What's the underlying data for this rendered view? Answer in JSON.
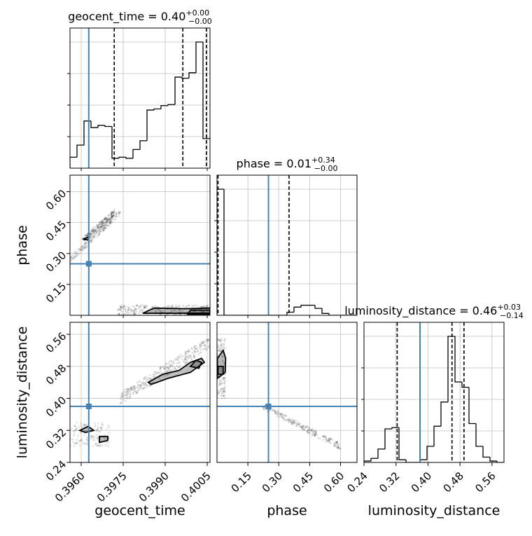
{
  "colors": {
    "truth": "#4682b4",
    "hist": "#000000",
    "grid": "#c0c0c0",
    "samples": "#7f7f7f"
  },
  "chart_data": {
    "type": "corner",
    "parameters": [
      "geocent_time",
      "phase",
      "luminosity_distance"
    ],
    "truths": {
      "geocent_time": 0.39627,
      "phase": 0.25,
      "luminosity_distance": 0.38
    },
    "titles": [
      {
        "param": "geocent_time",
        "text": "geocent_time = 0.40",
        "plus": "+0.00",
        "minus": "−0.00"
      },
      {
        "param": "phase",
        "text": "phase = 0.01",
        "plus": "+0.34",
        "minus": "−0.00"
      },
      {
        "param": "luminosity_distance",
        "text": "luminosity_distance = 0.46",
        "plus": "+0.03",
        "minus": "−0.14"
      }
    ],
    "axes": {
      "geocent_time": {
        "label": "geocent_time",
        "range": [
          0.3956,
          0.4006
        ],
        "ticks": [
          0.396,
          0.3975,
          0.399,
          0.4005
        ],
        "tick_labels": [
          "0.3960",
          "0.3975",
          "0.3990",
          "0.4005"
        ]
      },
      "phase": {
        "label": "phase",
        "range": [
          0.0,
          0.68
        ],
        "ticks": [
          0.15,
          0.3,
          0.45,
          0.6
        ],
        "tick_labels": [
          "0.15",
          "0.30",
          "0.45",
          "0.60"
        ]
      },
      "luminosity_distance": {
        "label": "luminosity_distance",
        "range": [
          0.24,
          0.59
        ],
        "ticks": [
          0.24,
          0.32,
          0.4,
          0.48,
          0.56
        ],
        "tick_labels": [
          "0.24",
          "0.32",
          "0.40",
          "0.48",
          "0.56"
        ]
      }
    },
    "hist_ylim_grid": [
      0,
      0.25,
      0.5,
      0.75,
      1
    ],
    "histograms": {
      "geocent_time": {
        "edges": [
          0.3956,
          0.39585,
          0.3961,
          0.39635,
          0.3966,
          0.39685,
          0.3971,
          0.39735,
          0.3976,
          0.39785,
          0.3981,
          0.39835,
          0.3986,
          0.39885,
          0.3991,
          0.39935,
          0.3996,
          0.39985,
          0.4001,
          0.40035,
          0.4006
        ],
        "counts": [
          10,
          21,
          43,
          37,
          39,
          38,
          9,
          10,
          9,
          17,
          25,
          53,
          54,
          57,
          58,
          83,
          82,
          87,
          115,
          27
        ],
        "quantile_lines": [
          0.39718,
          0.39963,
          0.40047
        ]
      },
      "phase": {
        "edges": [
          0.0,
          0.034,
          0.068,
          0.102,
          0.136,
          0.17,
          0.204,
          0.238,
          0.272,
          0.306,
          0.34,
          0.374,
          0.408,
          0.442,
          0.476,
          0.51,
          0.544,
          0.578,
          0.612,
          0.646,
          0.68
        ],
        "counts": [
          200,
          0,
          0,
          0,
          0,
          0,
          0,
          0,
          0,
          0,
          5,
          13,
          16,
          16,
          11,
          3,
          0,
          0,
          0,
          0
        ],
        "quantile_lines": [
          0.005,
          0.35
        ]
      },
      "luminosity_distance": {
        "edges": [
          0.24,
          0.2575,
          0.275,
          0.2925,
          0.31,
          0.3275,
          0.345,
          0.3625,
          0.38,
          0.3975,
          0.415,
          0.4325,
          0.45,
          0.4675,
          0.485,
          0.5025,
          0.52,
          0.5375,
          0.555,
          0.5725,
          0.59
        ],
        "counts": [
          1,
          3,
          10,
          25,
          26,
          2,
          0,
          0,
          2,
          12,
          27,
          45,
          94,
          60,
          56,
          29,
          12,
          4,
          1,
          0
        ],
        "quantile_lines": [
          0.323,
          0.46,
          0.49
        ]
      }
    },
    "scatter_panels": [
      {
        "x": "geocent_time",
        "y": "phase",
        "clusters": [
          {
            "x": [
              0.3956,
              0.3974
            ],
            "y": [
              0.27,
              0.5
            ],
            "density": 0.35,
            "n": 220
          },
          {
            "x": [
              0.3961,
              0.3972
            ],
            "y": [
              0.37,
              0.5
            ],
            "density": 0.75,
            "n": 160
          },
          {
            "x": [
              0.3973,
              0.4006
            ],
            "y": [
              0.0,
              0.05
            ],
            "density": 0.6,
            "n": 280
          }
        ],
        "contours": [
          {
            "points": [
              [
                0.39625,
                0.365
              ],
              [
                0.39628,
                0.38
              ],
              [
                0.39605,
                0.37
              ]
            ]
          },
          {
            "points": [
              [
                0.3982,
                0.01
              ],
              [
                0.3986,
                0.035
              ],
              [
                0.3997,
                0.032
              ],
              [
                0.4006,
                0.035
              ],
              [
                0.4006,
                0.01
              ]
            ]
          },
          {
            "points": [
              [
                0.3998,
                0.005
              ],
              [
                0.3999,
                0.025
              ],
              [
                0.4006,
                0.025
              ],
              [
                0.4006,
                0.005
              ]
            ]
          }
        ]
      },
      {
        "x": "geocent_time",
        "y": "luminosity_distance",
        "clusters": [
          {
            "x": [
              0.3956,
              0.397
            ],
            "y": [
              0.28,
              0.34
            ],
            "density": 0.45,
            "n": 140
          },
          {
            "x": [
              0.3974,
              0.4006
            ],
            "y": [
              0.4,
              0.54
            ],
            "density": 0.55,
            "n": 320
          }
        ],
        "contours": [
          {
            "points": [
              [
                0.39595,
                0.32
              ],
              [
                0.39625,
                0.33
              ],
              [
                0.39645,
                0.32
              ],
              [
                0.39615,
                0.315
              ]
            ]
          },
          {
            "points": [
              [
                0.39665,
                0.305
              ],
              [
                0.39695,
                0.305
              ],
              [
                0.39695,
                0.295
              ],
              [
                0.39665,
                0.29
              ]
            ]
          },
          {
            "points": [
              [
                0.3984,
                0.44
              ],
              [
                0.3989,
                0.46
              ],
              [
                0.3995,
                0.47
              ],
              [
                0.3999,
                0.49
              ],
              [
                0.4003,
                0.5
              ],
              [
                0.4004,
                0.49
              ],
              [
                0.3999,
                0.465
              ],
              [
                0.3991,
                0.45
              ],
              [
                0.3985,
                0.435
              ]
            ]
          },
          {
            "points": [
              [
                0.3999,
                0.48
              ],
              [
                0.4001,
                0.495
              ],
              [
                0.4003,
                0.49
              ],
              [
                0.4002,
                0.475
              ]
            ]
          }
        ]
      },
      {
        "x": "phase",
        "y": "luminosity_distance",
        "clusters": [
          {
            "x": [
              0.0,
              0.04
            ],
            "y": [
              0.4,
              0.55
            ],
            "density": 0.55,
            "n": 140
          },
          {
            "x": [
              0.22,
              0.6
            ],
            "y": [
              0.28,
              0.38
            ],
            "density": 0.55,
            "n": 220
          }
        ],
        "contours": [
          {
            "points": [
              [
                0.002,
                0.45
              ],
              [
                0.04,
                0.465
              ],
              [
                0.042,
                0.5
              ],
              [
                0.03,
                0.52
              ],
              [
                0.002,
                0.5
              ]
            ]
          },
          {
            "points": [
              [
                0.005,
                0.46
              ],
              [
                0.03,
                0.46
              ],
              [
                0.03,
                0.48
              ],
              [
                0.005,
                0.48
              ]
            ]
          }
        ]
      }
    ]
  }
}
